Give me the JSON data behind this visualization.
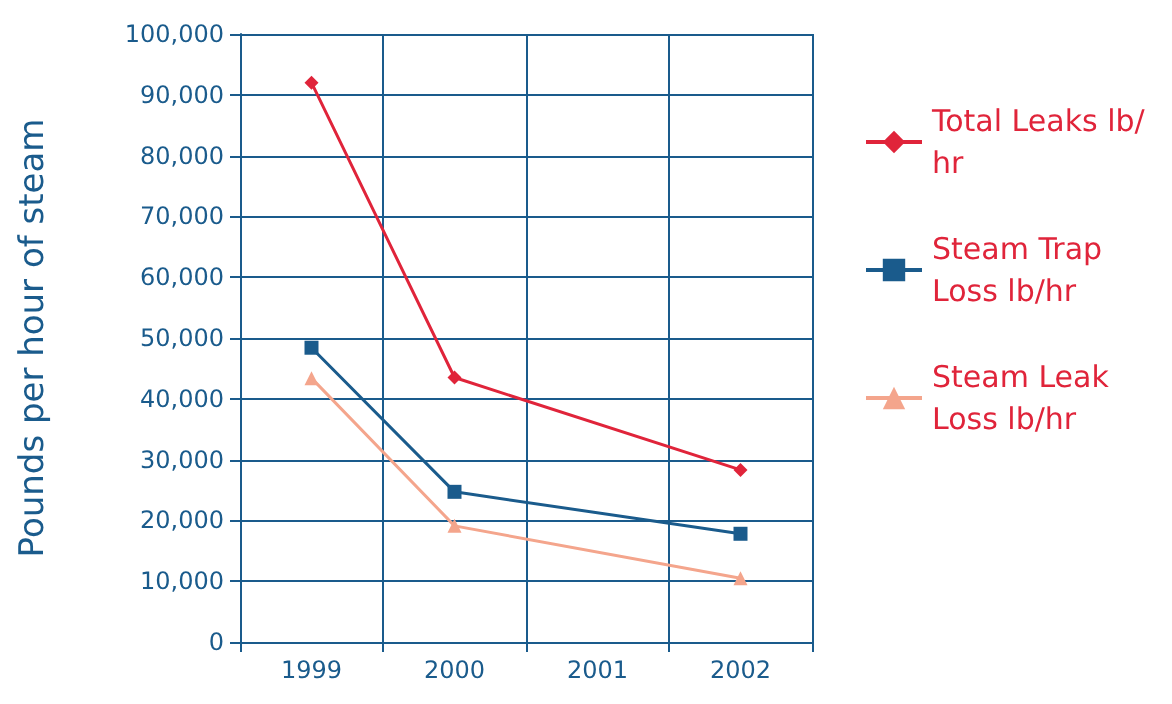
{
  "chart_data": {
    "type": "line",
    "ylabel": "Pounds per hour of steam",
    "categories": [
      "1999",
      "2000",
      "2001",
      "2002"
    ],
    "series": [
      {
        "name": "Total Leaks lb/hr",
        "color": "#e0243a",
        "marker": "diamond",
        "values": [
          92000,
          43500,
          null,
          28300
        ]
      },
      {
        "name": "Steam Trap Loss lb/hr",
        "color": "#1a5b8c",
        "marker": "square",
        "values": [
          48400,
          24700,
          null,
          17800
        ]
      },
      {
        "name": "Steam Leak Loss lb/hr",
        "color": "#f4a58c",
        "marker": "triangle",
        "values": [
          43400,
          19100,
          null,
          10500
        ]
      }
    ],
    "ylim": [
      0,
      100000
    ],
    "yticks": [
      {
        "value": 0,
        "label": "0"
      },
      {
        "value": 10000,
        "label": "10,000"
      },
      {
        "value": 20000,
        "label": "20,000"
      },
      {
        "value": 30000,
        "label": "30,000"
      },
      {
        "value": 40000,
        "label": "40,000"
      },
      {
        "value": 50000,
        "label": "50,000"
      },
      {
        "value": 60000,
        "label": "60,000"
      },
      {
        "value": 70000,
        "label": "70,000"
      },
      {
        "value": 80000,
        "label": "80,000"
      },
      {
        "value": 90000,
        "label": "90,000"
      },
      {
        "value": 100000,
        "label": "100,000"
      }
    ],
    "grid": true,
    "legend": "right"
  }
}
